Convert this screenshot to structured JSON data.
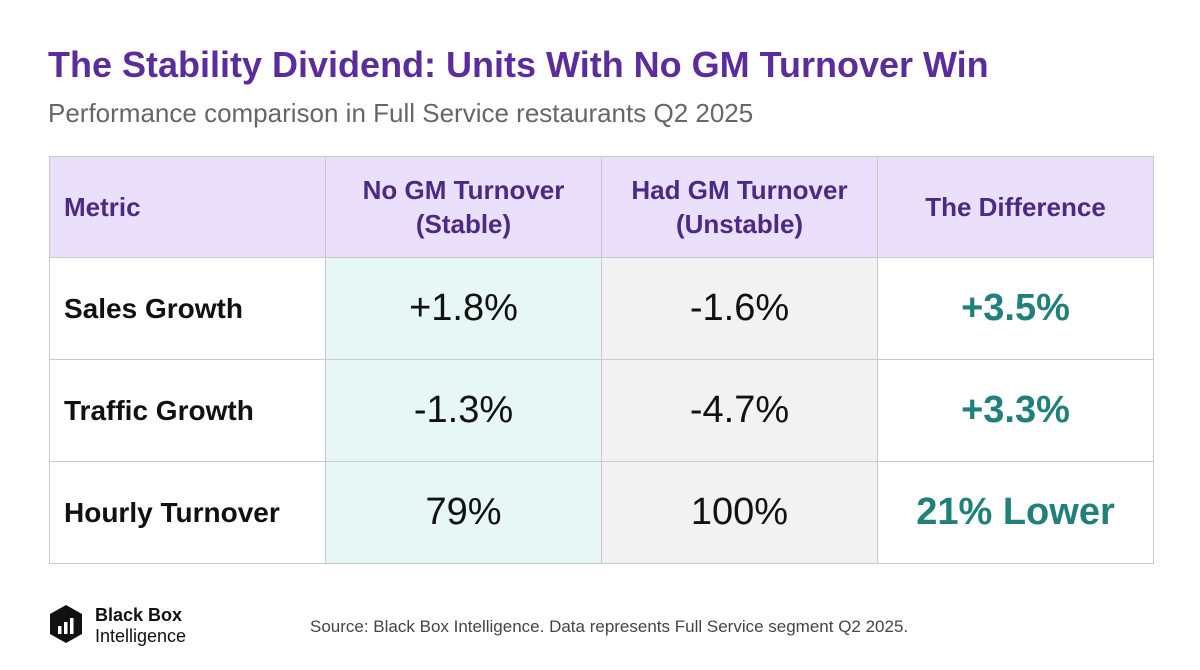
{
  "title": "The Stability Dividend: Units With No GM Turnover Win",
  "subtitle": "Performance comparison in Full Service restaurants Q2 2025",
  "chart_data": {
    "type": "table",
    "columns": [
      {
        "line1": "Metric",
        "line2": ""
      },
      {
        "line1": "No GM Turnover",
        "line2": "(Stable)"
      },
      {
        "line1": "Had GM Turnover",
        "line2": "(Unstable)"
      },
      {
        "line1": "The Difference",
        "line2": ""
      }
    ],
    "rows": [
      {
        "metric": "Sales Growth",
        "stable": "+1.8%",
        "unstable": "-1.6%",
        "difference": "+3.5%"
      },
      {
        "metric": "Traffic Growth",
        "stable": "-1.3%",
        "unstable": "-4.7%",
        "difference": "+3.3%"
      },
      {
        "metric": "Hourly Turnover",
        "stable": "79%",
        "unstable": "100%",
        "difference": "21% Lower"
      }
    ]
  },
  "footer": {
    "brand_line1": "Black Box",
    "brand_line2": "Intelligence",
    "logo_icon": "black-box-intelligence-logo-icon",
    "source": "Source: Black Box Intelligence. Data represents Full Service segment Q2 2025."
  },
  "colors": {
    "title": "#5b2d9c",
    "header_bg": "#ebe0fb",
    "stable_bg": "#e6f7f5",
    "unstable_bg": "#f2f2f2",
    "difference_text": "#22807a"
  }
}
